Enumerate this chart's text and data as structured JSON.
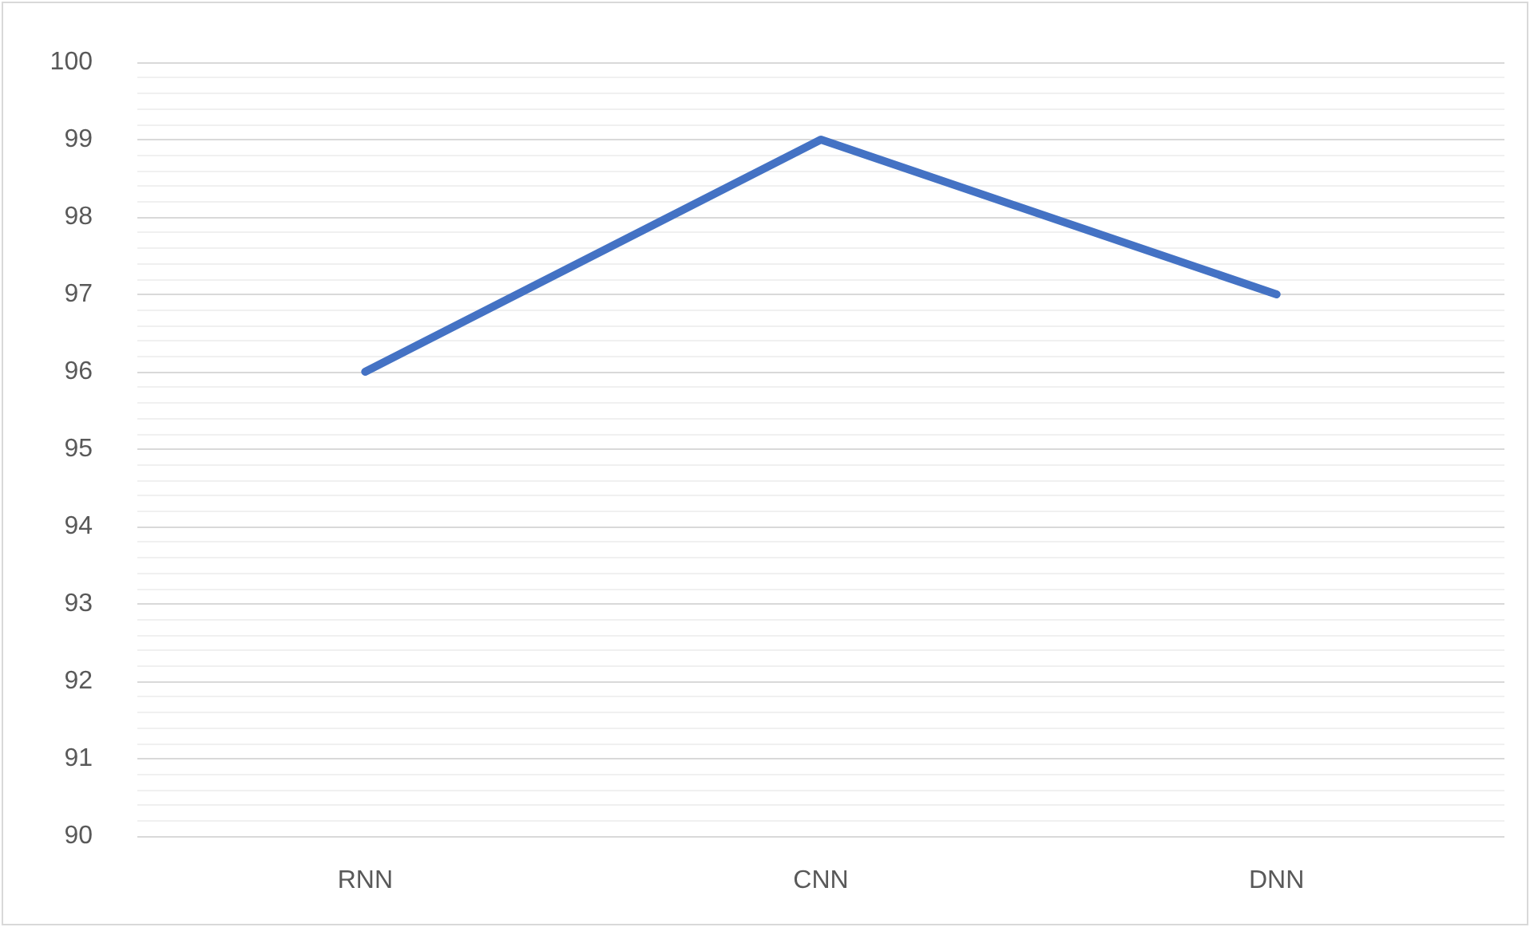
{
  "chart_data": {
    "type": "line",
    "categories": [
      "RNN",
      "CNN",
      "DNN"
    ],
    "series": [
      {
        "color": "#4472c4",
        "values": [
          96,
          99,
          97
        ]
      }
    ],
    "ylim": [
      90,
      100
    ],
    "yticks": [
      90,
      91,
      92,
      93,
      94,
      95,
      96,
      97,
      98,
      99,
      100
    ],
    "grid": "y",
    "marker": "none",
    "line_style": "solid"
  }
}
